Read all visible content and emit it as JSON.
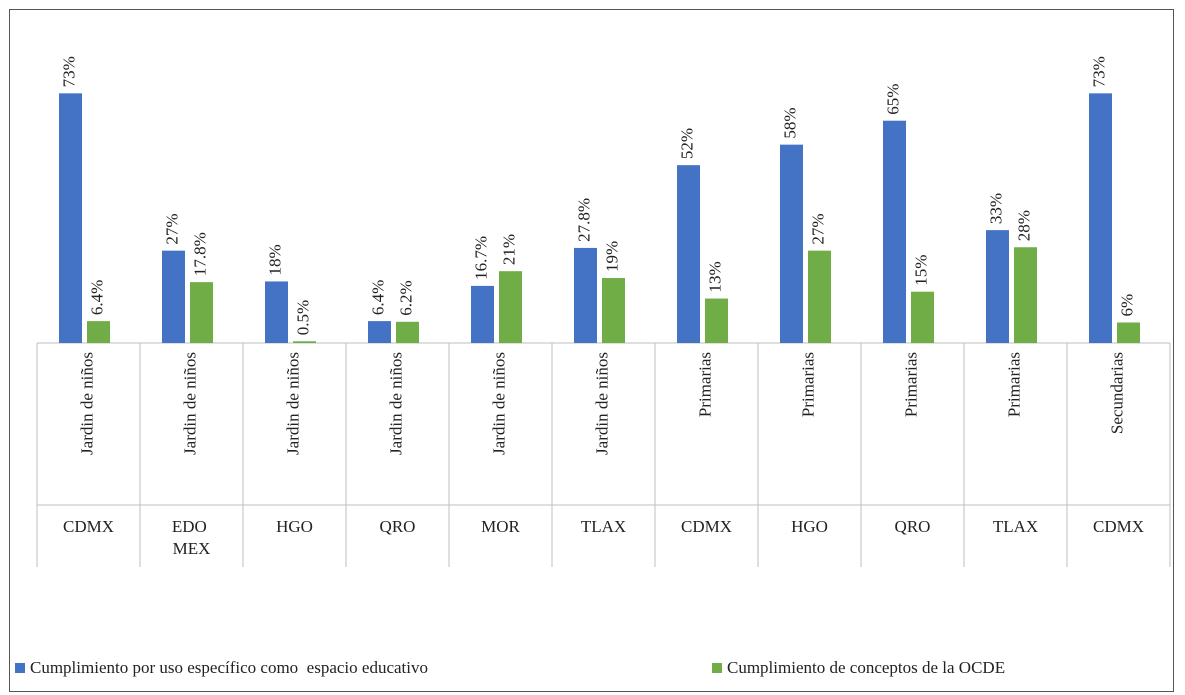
{
  "chart_data": {
    "type": "bar",
    "categories": [
      "Jardin de niños",
      "Jardin de niños",
      "Jardin de niños",
      "Jardin de niños",
      "Jardin de niños",
      "Jardin de niños",
      "Primarias",
      "Primarias",
      "Primarias",
      "Primarias",
      "Secundarias"
    ],
    "groups": [
      "CDMX",
      "EDO MEX",
      "HGO",
      "QRO",
      "MOR",
      "TLAX",
      "CDMX",
      "HGO",
      "QRO",
      "TLAX",
      "CDMX"
    ],
    "series": [
      {
        "name": "Cumplimiento por uso específico como  espacio educativo",
        "color": "#4472c4",
        "values": [
          73,
          27,
          18,
          6.4,
          16.7,
          27.8,
          52,
          58,
          65,
          33,
          73
        ],
        "value_labels": [
          "73%",
          "27%",
          "18%",
          "6.4%",
          "16.7%",
          "27.8%",
          "52%",
          "58%",
          "65%",
          "33%",
          "73%"
        ]
      },
      {
        "name": "Cumplimiento de conceptos de la OCDE",
        "color": "#70ad47",
        "values": [
          6.4,
          17.8,
          0.5,
          6.2,
          21,
          19,
          13,
          27,
          15,
          28,
          6
        ],
        "value_labels": [
          "6.4%",
          "17.8%",
          "0.5%",
          "6.2%",
          "21%",
          "19%",
          "13%",
          "27%",
          "15%",
          "28%",
          "6%"
        ]
      }
    ],
    "legend": "bottom"
  }
}
